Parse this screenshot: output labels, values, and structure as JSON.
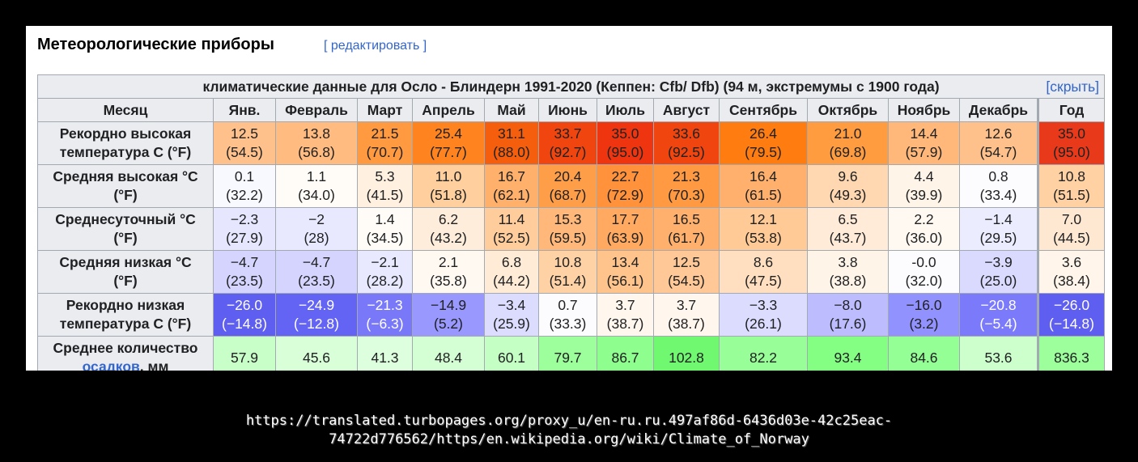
{
  "heading": {
    "title": "Метеорологические приборы",
    "edit": "[ редактировать ]"
  },
  "table": {
    "caption": "климатические данные для Осло - Блиндерн 1991-2020 (Кеппен: Cfb/ Dfb) (94 м, экстремумы с 1900 года)",
    "hide": "[скрыть]",
    "header": [
      "Месяц",
      "Янв.",
      "Февраль",
      "Март",
      "Апрель",
      "Май",
      "Июнь",
      "Июль",
      "Август",
      "Сентябрь",
      "Октябрь",
      "Ноябрь",
      "Декабрь",
      "Год"
    ],
    "rows": [
      {
        "label": [
          "Рекордно высокая",
          "температура С (°F)"
        ],
        "values": [
          [
            "12.5",
            "(54.5)"
          ],
          [
            "13.8",
            "(56.8)"
          ],
          [
            "21.5",
            "(70.7)"
          ],
          [
            "25.4",
            "(77.7)"
          ],
          [
            "31.1",
            "(88.0)"
          ],
          [
            "33.7",
            "(92.7)"
          ],
          [
            "35.0",
            "(95.0)"
          ],
          [
            "33.6",
            "(92.5)"
          ],
          [
            "26.4",
            "(79.5)"
          ],
          [
            "21.0",
            "(69.8)"
          ],
          [
            "14.4",
            "(57.9)"
          ],
          [
            "12.6",
            "(54.7)"
          ],
          [
            "35.0",
            "(95.0)"
          ]
        ],
        "colors": [
          "#ffc18c",
          "#ffbb80",
          "#ff9a40",
          "#ff8420",
          "#f55e0c",
          "#f0450e",
          "#ee3510",
          "#f0450e",
          "#ff7d10",
          "#ff9c40",
          "#ffb87a",
          "#ffc18b",
          "#e83a1a"
        ]
      },
      {
        "label": [
          "Средняя высокая °C",
          "(°F)"
        ],
        "values": [
          [
            "0.1",
            "(32.2)"
          ],
          [
            "1.1",
            "(34.0)"
          ],
          [
            "5.3",
            "(41.5)"
          ],
          [
            "11.0",
            "(51.8)"
          ],
          [
            "16.7",
            "(62.1)"
          ],
          [
            "20.4",
            "(68.7)"
          ],
          [
            "22.7",
            "(72.9)"
          ],
          [
            "21.3",
            "(70.3)"
          ],
          [
            "16.4",
            "(61.5)"
          ],
          [
            "9.6",
            "(49.3)"
          ],
          [
            "4.4",
            "(39.9)"
          ],
          [
            "0.8",
            "(33.4)"
          ],
          [
            "10.8",
            "(51.5)"
          ]
        ],
        "colors": [
          "#f8f8ff",
          "#fffbf6",
          "#fff0e0",
          "#ffcf9e",
          "#ffb06a",
          "#ff9e48",
          "#ff923a",
          "#ff9a42",
          "#ffb06c",
          "#ffd7b0",
          "#fff4e8",
          "#fcfcff",
          "#ffd1a3"
        ]
      },
      {
        "label": [
          "Среднесуточный °C",
          "(°F)"
        ],
        "values": [
          [
            "−2.3",
            "(27.9)"
          ],
          [
            "−2",
            "(28)"
          ],
          [
            "1.4",
            "(34.5)"
          ],
          [
            "6.2",
            "(43.2)"
          ],
          [
            "11.4",
            "(52.5)"
          ],
          [
            "15.3",
            "(59.5)"
          ],
          [
            "17.7",
            "(63.9)"
          ],
          [
            "16.5",
            "(61.7)"
          ],
          [
            "12.1",
            "(53.8)"
          ],
          [
            "6.5",
            "(43.7)"
          ],
          [
            "2.2",
            "(36.0)"
          ],
          [
            "−1.4",
            "(29.5)"
          ],
          [
            "7.0",
            "(44.5)"
          ]
        ],
        "colors": [
          "#e6e6ff",
          "#e8e8ff",
          "#fffcf8",
          "#ffeddc",
          "#ffcd9c",
          "#ffb87a",
          "#ffaa60",
          "#ffb06c",
          "#ffca95",
          "#ffebd8",
          "#fff9f2",
          "#ececff",
          "#ffe8d2"
        ]
      },
      {
        "label": [
          "Средняя низкая °C",
          "(°F)"
        ],
        "values": [
          [
            "−4.7",
            "(23.5)"
          ],
          [
            "−4.7",
            "(23.5)"
          ],
          [
            "−2.1",
            "(28.2)"
          ],
          [
            "2.1",
            "(35.8)"
          ],
          [
            "6.8",
            "(44.2)"
          ],
          [
            "10.8",
            "(51.4)"
          ],
          [
            "13.4",
            "(56.1)"
          ],
          [
            "12.5",
            "(54.5)"
          ],
          [
            "8.6",
            "(47.5)"
          ],
          [
            "3.8",
            "(38.8)"
          ],
          [
            "-0.0",
            "(32.0)"
          ],
          [
            "−3.9",
            "(25.0)"
          ],
          [
            "3.6",
            "(38.4)"
          ]
        ],
        "colors": [
          "#d4d4ff",
          "#d4d4ff",
          "#e8e8ff",
          "#fff9f2",
          "#ffebd6",
          "#ffd2a6",
          "#ffc48c",
          "#ffc896",
          "#ffdfc0",
          "#fff4e8",
          "#fcfcff",
          "#dadaff",
          "#fff5ea"
        ]
      },
      {
        "label": [
          "Рекордно низкая",
          "температура С (°F)"
        ],
        "values": [
          [
            "−26.0",
            "(−14.8)"
          ],
          [
            "−24.9",
            "(−12.8)"
          ],
          [
            "−21.3",
            "(−6.3)"
          ],
          [
            "−14.9",
            "(5.2)"
          ],
          [
            "−3.4",
            "(25.9)"
          ],
          [
            "0.7",
            "(33.3)"
          ],
          [
            "3.7",
            "(38.7)"
          ],
          [
            "3.7",
            "(38.7)"
          ],
          [
            "−3.3",
            "(26.1)"
          ],
          [
            "−8.0",
            "(17.6)"
          ],
          [
            "−16.0",
            "(3.2)"
          ],
          [
            "−20.8",
            "(−5.4)"
          ],
          [
            "−26.0",
            "(−14.8)"
          ]
        ],
        "colors": [
          "#5e5ef0",
          "#6464f4",
          "#7878f8",
          "#9898ff",
          "#dcdcff",
          "#fcfcff",
          "#fff6ee",
          "#fff6ee",
          "#dcdcff",
          "#bcbcff",
          "#9292ff",
          "#7a7afa",
          "#5e5ef0"
        ],
        "text_colors": [
          "#ffffff",
          "#ffffff",
          "#ffffff",
          "#202122",
          "#202122",
          "#202122",
          "#202122",
          "#202122",
          "#202122",
          "#202122",
          "#202122",
          "#ffffff",
          "#ffffff"
        ]
      },
      {
        "label": [
          "Среднее количество",
          "осадков",
          ", мм"
        ],
        "values": [
          [
            "57.9"
          ],
          [
            "45.6"
          ],
          [
            "41.3"
          ],
          [
            "48.4"
          ],
          [
            "60.1"
          ],
          [
            "79.7"
          ],
          [
            "86.7"
          ],
          [
            "102.8"
          ],
          [
            "82.2"
          ],
          [
            "93.4"
          ],
          [
            "84.6"
          ],
          [
            "53.6"
          ],
          [
            "836.3"
          ]
        ],
        "colors": [
          "#c8ffc8",
          "#d8ffd8",
          "#ddffdd",
          "#d4ffd4",
          "#c4ffc4",
          "#9cff9c",
          "#8eff8e",
          "#70f870",
          "#98ff98",
          "#84ff84",
          "#94ff94",
          "#ccffcc",
          "#9cff9c"
        ]
      }
    ]
  },
  "url": [
    "https://translated.turbopages.org/proxy_u/en-ru.ru.497af86d-6436d03e-42c25eac-",
    "74722d776562/https/en.wikipedia.org/wiki/Climate_of_Norway"
  ]
}
